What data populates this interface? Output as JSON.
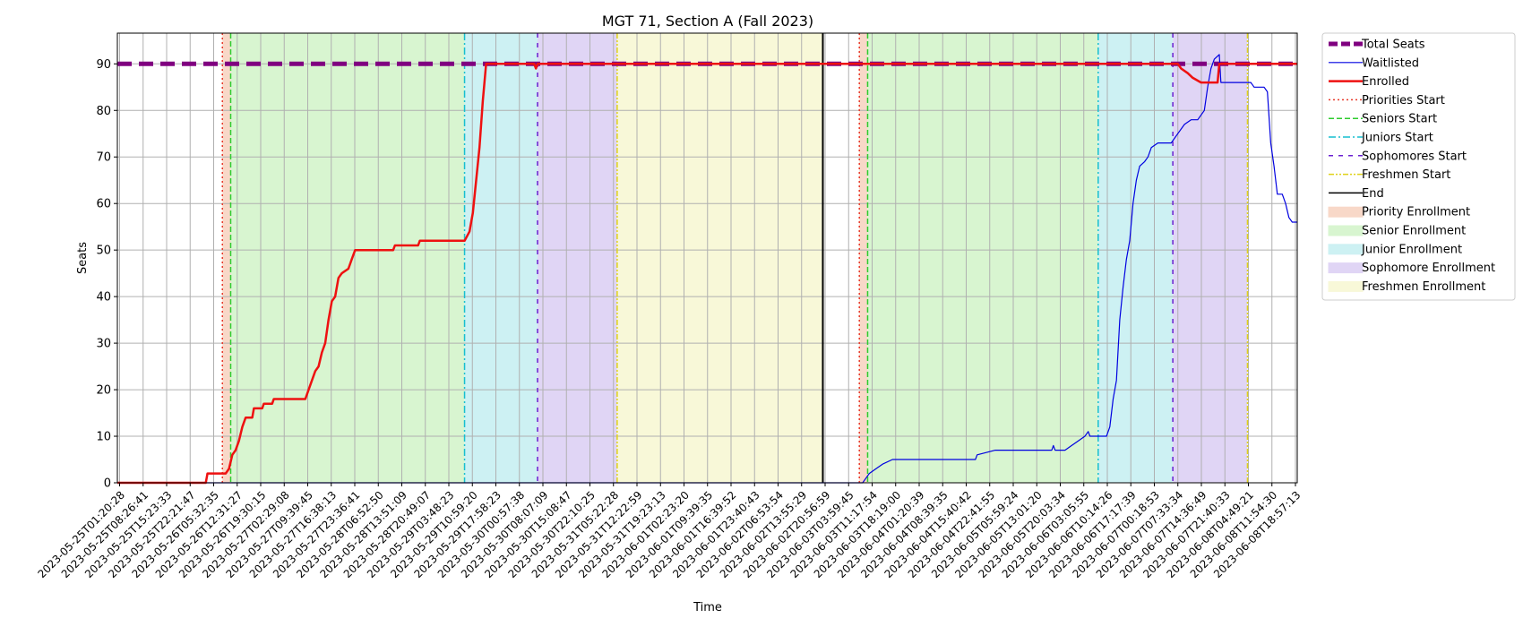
{
  "chart_data": {
    "type": "line",
    "title": "MGT 71, Section A (Fall 2023)",
    "xlabel": "Time",
    "ylabel": "Seats",
    "x_range": [
      "2023-05-25T01:20:28",
      "2023-06-08T21:00:00"
    ],
    "ylim": [
      0,
      96.6
    ],
    "y_ticks": [
      0,
      10,
      20,
      30,
      40,
      50,
      60,
      70,
      80,
      90
    ],
    "grid": true,
    "legend_position": "outside-right",
    "x_tick_labels": [
      "2023-05-25T01:20:28",
      "2023-05-25T08:26:41",
      "2023-05-25T15:23:33",
      "2023-05-25T22:21:47",
      "2023-05-26T05:32:35",
      "2023-05-26T12:31:27",
      "2023-05-26T19:30:15",
      "2023-05-27T02:29:08",
      "2023-05-27T09:39:45",
      "2023-05-27T16:38:13",
      "2023-05-27T23:36:41",
      "2023-05-28T06:52:50",
      "2023-05-28T13:51:09",
      "2023-05-28T20:49:07",
      "2023-05-29T03:48:23",
      "2023-05-29T10:59:20",
      "2023-05-29T17:58:23",
      "2023-05-30T00:57:38",
      "2023-05-30T08:07:09",
      "2023-05-30T15:08:47",
      "2023-05-30T22:10:25",
      "2023-05-31T05:22:28",
      "2023-05-31T12:22:59",
      "2023-05-31T19:23:13",
      "2023-06-01T02:23:20",
      "2023-06-01T09:39:35",
      "2023-06-01T16:39:52",
      "2023-06-01T23:40:43",
      "2023-06-02T06:53:54",
      "2023-06-02T13:55:29",
      "2023-06-02T20:56:59",
      "2023-06-03T03:59:45",
      "2023-06-03T11:17:54",
      "2023-06-03T18:19:00",
      "2023-06-04T01:20:39",
      "2023-06-04T08:39:35",
      "2023-06-04T15:40:42",
      "2023-06-04T22:41:55",
      "2023-06-05T05:59:24",
      "2023-06-05T13:01:20",
      "2023-06-05T20:03:34",
      "2023-06-06T03:05:55",
      "2023-06-06T10:14:26",
      "2023-06-06T17:17:39",
      "2023-06-07T00:18:53",
      "2023-06-07T07:33:34",
      "2023-06-07T14:36:49",
      "2023-06-07T21:40:33",
      "2023-06-08T04:49:21",
      "2023-06-08T11:54:30",
      "2023-06-08T18:57:13"
    ],
    "phases": [
      {
        "name": "Priority Enrollment",
        "start": "2023-05-26T09:00:00",
        "end": "2023-05-26T11:30:00",
        "color": "#f8d8c8"
      },
      {
        "name": "Senior Enrollment",
        "start": "2023-05-26T11:30:00",
        "end": "2023-05-29T10:00:00",
        "color": "#d8f5d0"
      },
      {
        "name": "Junior Enrollment",
        "start": "2023-05-29T10:00:00",
        "end": "2023-05-30T08:00:00",
        "color": "#cdf1f3"
      },
      {
        "name": "Sophomore Enrollment",
        "start": "2023-05-30T08:00:00",
        "end": "2023-05-31T08:00:00",
        "color": "#e0d5f5"
      },
      {
        "name": "Freshmen Enrollment",
        "start": "2023-05-31T08:00:00",
        "end": "2023-06-02T22:00:00",
        "color": "#f8f8d8"
      },
      {
        "name": "Priority Enrollment",
        "start": "2023-06-03T09:00:00",
        "end": "2023-06-03T11:30:00",
        "color": "#f8d8c8"
      },
      {
        "name": "Senior Enrollment",
        "start": "2023-06-03T11:30:00",
        "end": "2023-06-06T09:00:00",
        "color": "#d8f5d0"
      },
      {
        "name": "Junior Enrollment",
        "start": "2023-06-06T09:00:00",
        "end": "2023-06-07T07:30:00",
        "color": "#cdf1f3"
      },
      {
        "name": "Sophomore Enrollment",
        "start": "2023-06-07T07:30:00",
        "end": "2023-06-08T06:00:00",
        "color": "#e0d5f5"
      }
    ],
    "markers": [
      {
        "name": "Priorities Start",
        "times": [
          "2023-05-26T09:00:00",
          "2023-06-03T09:00:00"
        ],
        "color": "#e8382a",
        "style": "dotted"
      },
      {
        "name": "Seniors Start",
        "times": [
          "2023-05-26T11:30:00",
          "2023-06-03T11:30:00"
        ],
        "color": "#2ecc2e",
        "style": "dashed"
      },
      {
        "name": "Juniors Start",
        "times": [
          "2023-05-29T10:00:00",
          "2023-06-06T09:00:00"
        ],
        "color": "#17bfcf",
        "style": "dashdot"
      },
      {
        "name": "Sophomores Start",
        "times": [
          "2023-05-30T08:00:00",
          "2023-06-07T07:30:00"
        ],
        "color": "#6a1fd0",
        "style": "loosedash"
      },
      {
        "name": "Freshmen Start",
        "times": [
          "2023-05-31T08:00:00",
          "2023-06-08T06:00:00"
        ],
        "color": "#e0d21a",
        "style": "dashdotdot"
      },
      {
        "name": "End",
        "times": [
          "2023-06-02T22:00:00"
        ],
        "color": "#000000",
        "style": "solid"
      }
    ],
    "series": [
      {
        "name": "Total Seats",
        "color": "#800080",
        "style": "thickdash",
        "points": [
          [
            "2023-05-25T01:20:28",
            90
          ],
          [
            "2023-06-08T21:00:00",
            90
          ]
        ]
      },
      {
        "name": "Waitlisted",
        "color": "#0000e0",
        "style": "thin",
        "points": [
          [
            "2023-05-25T01:20:28",
            0
          ],
          [
            "2023-06-03T10:00:00",
            0
          ],
          [
            "2023-06-03T11:00:00",
            1
          ],
          [
            "2023-06-03T12:00:00",
            2
          ],
          [
            "2023-06-03T14:00:00",
            3
          ],
          [
            "2023-06-03T16:00:00",
            4
          ],
          [
            "2023-06-03T19:00:00",
            5
          ],
          [
            "2023-06-04T20:00:00",
            5
          ],
          [
            "2023-06-04T20:30:00",
            6
          ],
          [
            "2023-06-05T02:00:00",
            7
          ],
          [
            "2023-06-05T19:00:00",
            7
          ],
          [
            "2023-06-05T19:30:00",
            8
          ],
          [
            "2023-06-05T20:00:00",
            7
          ],
          [
            "2023-06-05T23:00:00",
            7
          ],
          [
            "2023-06-06T01:00:00",
            8
          ],
          [
            "2023-06-06T03:00:00",
            9
          ],
          [
            "2023-06-06T05:00:00",
            10
          ],
          [
            "2023-06-06T06:00:00",
            11
          ],
          [
            "2023-06-06T06:30:00",
            10
          ],
          [
            "2023-06-06T11:30:00",
            10
          ],
          [
            "2023-06-06T12:30:00",
            12
          ],
          [
            "2023-06-06T13:30:00",
            18
          ],
          [
            "2023-06-06T14:30:00",
            22
          ],
          [
            "2023-06-06T15:30:00",
            35
          ],
          [
            "2023-06-06T16:30:00",
            42
          ],
          [
            "2023-06-06T17:30:00",
            48
          ],
          [
            "2023-06-06T18:30:00",
            52
          ],
          [
            "2023-06-06T19:30:00",
            60
          ],
          [
            "2023-06-06T20:30:00",
            65
          ],
          [
            "2023-06-06T21:30:00",
            68
          ],
          [
            "2023-06-06T23:00:00",
            69
          ],
          [
            "2023-06-07T00:00:00",
            70
          ],
          [
            "2023-06-07T01:00:00",
            72
          ],
          [
            "2023-06-07T03:00:00",
            73
          ],
          [
            "2023-06-07T07:00:00",
            73
          ],
          [
            "2023-06-07T08:00:00",
            74
          ],
          [
            "2023-06-07T09:00:00",
            75
          ],
          [
            "2023-06-07T11:00:00",
            77
          ],
          [
            "2023-06-07T13:00:00",
            78
          ],
          [
            "2023-06-07T15:00:00",
            78
          ],
          [
            "2023-06-07T17:00:00",
            80
          ],
          [
            "2023-06-07T18:00:00",
            85
          ],
          [
            "2023-06-07T19:00:00",
            89
          ],
          [
            "2023-06-07T20:00:00",
            91
          ],
          [
            "2023-06-07T21:30:00",
            92
          ],
          [
            "2023-06-07T22:00:00",
            86
          ],
          [
            "2023-06-08T07:00:00",
            86
          ],
          [
            "2023-06-08T08:00:00",
            85
          ],
          [
            "2023-06-08T11:00:00",
            85
          ],
          [
            "2023-06-08T12:00:00",
            84
          ],
          [
            "2023-06-08T13:00:00",
            73
          ],
          [
            "2023-06-08T14:00:00",
            68
          ],
          [
            "2023-06-08T15:00:00",
            62
          ],
          [
            "2023-06-08T16:30:00",
            62
          ],
          [
            "2023-06-08T17:30:00",
            60
          ],
          [
            "2023-06-08T18:30:00",
            57
          ],
          [
            "2023-06-08T19:30:00",
            56
          ],
          [
            "2023-06-08T21:00:00",
            56
          ]
        ]
      },
      {
        "name": "Enrolled",
        "color": "#ee1111",
        "style": "thick",
        "points": [
          [
            "2023-05-25T01:20:28",
            0
          ],
          [
            "2023-05-26T04:00:00",
            0
          ],
          [
            "2023-05-26T04:30:00",
            2
          ],
          [
            "2023-05-26T10:00:00",
            2
          ],
          [
            "2023-05-26T11:00:00",
            3
          ],
          [
            "2023-05-26T12:00:00",
            6
          ],
          [
            "2023-05-26T13:00:00",
            7
          ],
          [
            "2023-05-26T14:00:00",
            9
          ],
          [
            "2023-05-26T15:00:00",
            12
          ],
          [
            "2023-05-26T16:00:00",
            14
          ],
          [
            "2023-05-26T18:00:00",
            14
          ],
          [
            "2023-05-26T18:30:00",
            16
          ],
          [
            "2023-05-26T21:00:00",
            16
          ],
          [
            "2023-05-26T21:30:00",
            17
          ],
          [
            "2023-05-27T00:00:00",
            17
          ],
          [
            "2023-05-27T00:30:00",
            18
          ],
          [
            "2023-05-27T10:00:00",
            18
          ],
          [
            "2023-05-27T11:00:00",
            20
          ],
          [
            "2023-05-27T12:00:00",
            22
          ],
          [
            "2023-05-27T13:00:00",
            24
          ],
          [
            "2023-05-27T14:00:00",
            25
          ],
          [
            "2023-05-27T15:00:00",
            28
          ],
          [
            "2023-05-27T16:00:00",
            30
          ],
          [
            "2023-05-27T17:00:00",
            35
          ],
          [
            "2023-05-27T18:00:00",
            39
          ],
          [
            "2023-05-27T19:00:00",
            40
          ],
          [
            "2023-05-27T20:00:00",
            44
          ],
          [
            "2023-05-27T21:00:00",
            45
          ],
          [
            "2023-05-27T23:00:00",
            46
          ],
          [
            "2023-05-28T00:00:00",
            48
          ],
          [
            "2023-05-28T01:00:00",
            50
          ],
          [
            "2023-05-28T12:30:00",
            50
          ],
          [
            "2023-05-28T13:00:00",
            51
          ],
          [
            "2023-05-28T20:00:00",
            51
          ],
          [
            "2023-05-28T20:30:00",
            52
          ],
          [
            "2023-05-29T10:00:00",
            52
          ],
          [
            "2023-05-29T11:30:00",
            54
          ],
          [
            "2023-05-29T12:30:00",
            58
          ],
          [
            "2023-05-29T13:30:00",
            65
          ],
          [
            "2023-05-29T14:30:00",
            72
          ],
          [
            "2023-05-29T15:30:00",
            82
          ],
          [
            "2023-05-29T16:30:00",
            90
          ],
          [
            "2023-05-30T07:00:00",
            90
          ],
          [
            "2023-05-30T07:30:00",
            89
          ],
          [
            "2023-05-30T08:00:00",
            90
          ],
          [
            "2023-06-07T09:00:00",
            90
          ],
          [
            "2023-06-07T10:00:00",
            89
          ],
          [
            "2023-06-07T12:00:00",
            88
          ],
          [
            "2023-06-07T13:30:00",
            87
          ],
          [
            "2023-06-07T16:00:00",
            86
          ],
          [
            "2023-06-07T21:00:00",
            86
          ],
          [
            "2023-06-07T21:30:00",
            90
          ],
          [
            "2023-06-08T21:00:00",
            90
          ]
        ]
      }
    ],
    "legend": [
      "Total Seats",
      "Waitlisted",
      "Enrolled",
      "Priorities Start",
      "Seniors Start",
      "Juniors Start",
      "Sophomores Start",
      "Freshmen Start",
      "End",
      "Priority Enrollment",
      "Senior Enrollment",
      "Junior Enrollment",
      "Sophomore Enrollment",
      "Freshmen Enrollment"
    ]
  }
}
